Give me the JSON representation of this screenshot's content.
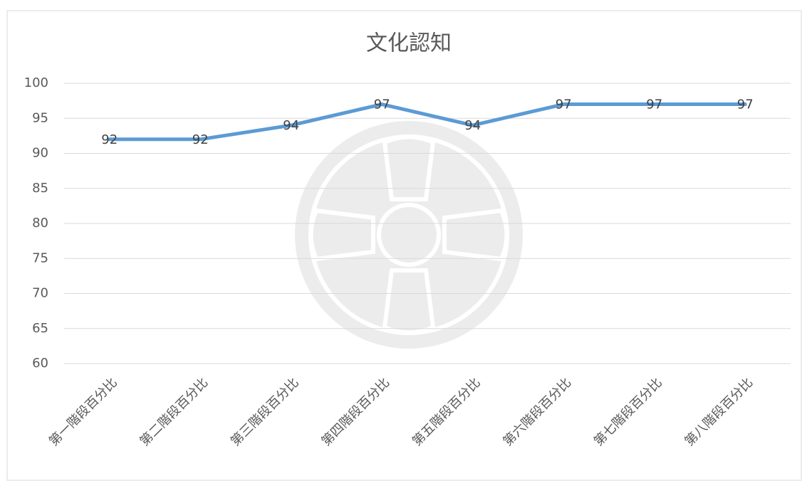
{
  "chart_data": {
    "type": "line",
    "title": "文化認知",
    "categories": [
      "第一階段百分比",
      "第二階段百分比",
      "第三階段百分比",
      "第四階段百分比",
      "第五階段百分比",
      "第六階段百分比",
      "第七階段百分比",
      "第八階段百分比"
    ],
    "values": [
      92,
      92,
      94,
      97,
      94,
      97,
      97,
      97
    ],
    "color": "#5b9bd5",
    "ylim": [
      60,
      100
    ],
    "yticks": [
      60,
      65,
      70,
      75,
      80,
      85,
      90,
      95,
      100
    ],
    "grid": true
  }
}
